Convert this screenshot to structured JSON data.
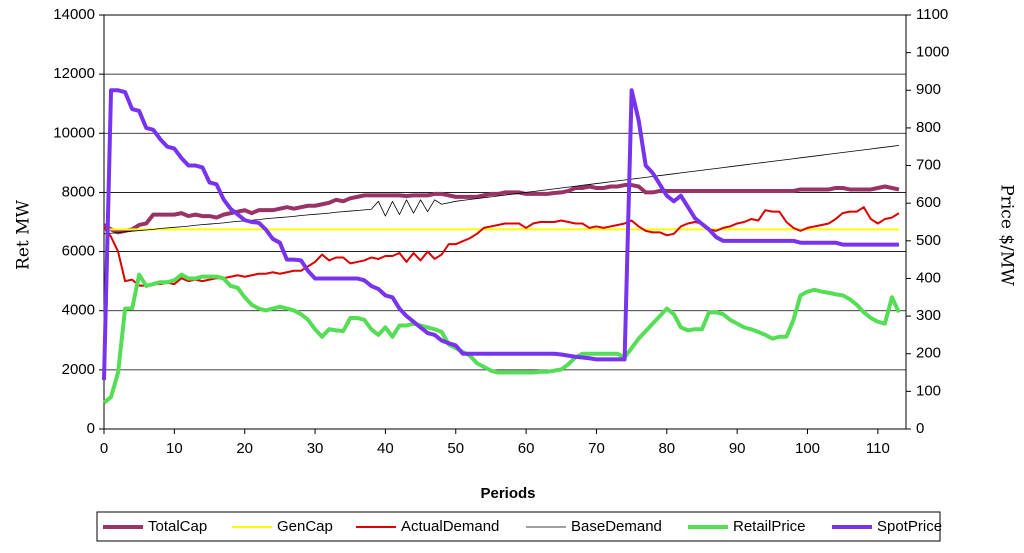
{
  "chart_data": {
    "type": "line",
    "x_label": "Periods",
    "y_label": "Ret MW",
    "y2_label": "Price $/MW",
    "x": [
      0,
      1,
      2,
      3,
      4,
      5,
      6,
      7,
      8,
      9,
      10,
      11,
      12,
      13,
      14,
      15,
      16,
      17,
      18,
      19,
      20,
      21,
      22,
      23,
      24,
      25,
      26,
      27,
      28,
      29,
      30,
      31,
      32,
      33,
      34,
      35,
      36,
      37,
      38,
      39,
      40,
      41,
      42,
      43,
      44,
      45,
      46,
      47,
      48,
      49,
      50,
      51,
      52,
      53,
      54,
      55,
      56,
      57,
      58,
      59,
      60,
      61,
      62,
      63,
      64,
      65,
      66,
      67,
      68,
      69,
      70,
      71,
      72,
      73,
      74,
      75,
      76,
      77,
      78,
      79,
      80,
      81,
      82,
      83,
      84,
      85,
      86,
      87,
      88,
      89,
      90,
      91,
      92,
      93,
      94,
      95,
      96,
      97,
      98,
      99,
      100,
      101,
      102,
      103,
      104,
      105,
      106,
      107,
      108,
      109,
      110,
      111,
      112,
      113
    ],
    "xlim": [
      0,
      114
    ],
    "xticks": [
      0,
      10,
      20,
      30,
      40,
      50,
      60,
      70,
      80,
      90,
      100,
      110
    ],
    "ylim": [
      0,
      14000
    ],
    "yticks": [
      0,
      2000,
      4000,
      6000,
      8000,
      10000,
      12000,
      14000
    ],
    "y2lim": [
      0,
      1100
    ],
    "y2ticks": [
      0,
      100,
      200,
      300,
      400,
      500,
      600,
      700,
      800,
      900,
      1000,
      1100
    ],
    "grid": true,
    "legend": "bottom",
    "series": [
      {
        "name": "TotalCap",
        "color": "#993366",
        "width": 4,
        "values": [
          6900,
          6750,
          6650,
          6700,
          6750,
          6900,
          6950,
          7250,
          7250,
          7250,
          7250,
          7300,
          7200,
          7250,
          7200,
          7200,
          7150,
          7250,
          7300,
          7350,
          7400,
          7300,
          7400,
          7400,
          7400,
          7450,
          7500,
          7450,
          7500,
          7550,
          7550,
          7600,
          7650,
          7750,
          7700,
          7800,
          7850,
          7900,
          7900,
          7900,
          7900,
          7900,
          7900,
          7880,
          7900,
          7900,
          7900,
          7950,
          7950,
          7900,
          7850,
          7850,
          7850,
          7850,
          7900,
          7950,
          7950,
          8000,
          8000,
          8000,
          7950,
          7950,
          7950,
          7950,
          7980,
          8000,
          8050,
          8150,
          8150,
          8200,
          8150,
          8150,
          8200,
          8200,
          8250,
          8250,
          8200,
          8000,
          8000,
          8050,
          8050,
          8050,
          8050,
          8050,
          8050,
          8050,
          8050,
          8050,
          8050,
          8050,
          8050,
          8050,
          8050,
          8050,
          8050,
          8050,
          8050,
          8050,
          8050,
          8100,
          8100,
          8100,
          8100,
          8100,
          8150,
          8150,
          8100,
          8100,
          8100,
          8100,
          8150,
          8200,
          8150,
          8100
        ]
      },
      {
        "name": "GenCap",
        "color": "#ffff00",
        "width": 2,
        "values": [
          6750,
          6750,
          6750,
          6750,
          6750,
          6750,
          6750,
          6750,
          6750,
          6750,
          6750,
          6750,
          6750,
          6750,
          6750,
          6750,
          6750,
          6750,
          6750,
          6750,
          6750,
          6750,
          6750,
          6750,
          6750,
          6750,
          6750,
          6750,
          6750,
          6750,
          6750,
          6750,
          6750,
          6750,
          6750,
          6750,
          6750,
          6750,
          6750,
          6750,
          6750,
          6750,
          6750,
          6750,
          6750,
          6750,
          6750,
          6750,
          6750,
          6750,
          6750,
          6750,
          6750,
          6750,
          6750,
          6750,
          6750,
          6750,
          6750,
          6750,
          6750,
          6750,
          6750,
          6750,
          6750,
          6750,
          6750,
          6750,
          6750,
          6750,
          6750,
          6750,
          6750,
          6750,
          6750,
          6750,
          6750,
          6750,
          6750,
          6750,
          6750,
          6750,
          6750,
          6750,
          6750,
          6750,
          6750,
          6750,
          6750,
          6750,
          6750,
          6750,
          6750,
          6750,
          6750,
          6750,
          6750,
          6750,
          6750,
          6750,
          6750,
          6750,
          6750,
          6750,
          6750,
          6750,
          6750,
          6750,
          6750,
          6750,
          6750,
          6750,
          6750,
          6750
        ]
      },
      {
        "name": "ActualDemand",
        "color": "#dd0000",
        "width": 2,
        "values": [
          6800,
          6500,
          6000,
          5000,
          5050,
          4850,
          4850,
          4900,
          4900,
          4950,
          4900,
          5100,
          5000,
          5050,
          5000,
          5050,
          5100,
          5100,
          5150,
          5200,
          5150,
          5200,
          5250,
          5250,
          5300,
          5250,
          5300,
          5350,
          5350,
          5500,
          5650,
          5900,
          5700,
          5800,
          5800,
          5600,
          5650,
          5700,
          5800,
          5750,
          5850,
          5850,
          5950,
          5650,
          5950,
          5700,
          6000,
          5750,
          5900,
          6250,
          6250,
          6350,
          6450,
          6600,
          6800,
          6850,
          6900,
          6950,
          6950,
          6950,
          6800,
          6950,
          7000,
          7000,
          7000,
          7050,
          7000,
          6950,
          6950,
          6800,
          6850,
          6800,
          6850,
          6900,
          6950,
          7050,
          6850,
          6700,
          6650,
          6650,
          6550,
          6600,
          6850,
          6950,
          7000,
          6950,
          6750,
          6700,
          6800,
          6850,
          6950,
          7000,
          7100,
          7050,
          7400,
          7350,
          7350,
          7000,
          6800,
          6700,
          6800,
          6850,
          6900,
          6950,
          7100,
          7300,
          7350,
          7350,
          7500,
          7100,
          6950,
          7100,
          7150,
          7300
        ]
      },
      {
        "name": "BaseDemand",
        "color": "#000000",
        "width": 0.8,
        "values": [
          6600,
          6620,
          6640,
          6670,
          6690,
          6710,
          6730,
          6750,
          6780,
          6800,
          6820,
          6840,
          6860,
          6890,
          6910,
          6930,
          6950,
          6970,
          7000,
          7020,
          7040,
          7060,
          7080,
          7110,
          7130,
          7150,
          7170,
          7190,
          7220,
          7240,
          7260,
          7280,
          7300,
          7330,
          7350,
          7370,
          7390,
          7410,
          7430,
          7700,
          7200,
          7700,
          7250,
          7750,
          7300,
          7750,
          7350,
          7750,
          7600,
          7650,
          7700,
          7730,
          7760,
          7790,
          7820,
          7850,
          7880,
          7910,
          7940,
          7970,
          8000,
          8030,
          8060,
          8090,
          8120,
          8150,
          8180,
          8210,
          8240,
          8270,
          8300,
          8330,
          8360,
          8390,
          8420,
          8450,
          8480,
          8510,
          8540,
          8570,
          8600,
          8630,
          8660,
          8690,
          8720,
          8750,
          8780,
          8810,
          8840,
          8870,
          8900,
          8930,
          8960,
          8990,
          9020,
          9050,
          9080,
          9110,
          9140,
          9170,
          9200,
          9230,
          9260,
          9290,
          9320,
          9350,
          9380,
          9410,
          9440,
          9470,
          9500,
          9530,
          9560,
          9590
        ]
      },
      {
        "name": "RetailPrice",
        "color": "#55dd55",
        "width": 4,
        "axis": "y2",
        "values": [
          70,
          85,
          150,
          320,
          320,
          410,
          380,
          385,
          390,
          390,
          395,
          410,
          400,
          400,
          405,
          405,
          405,
          400,
          380,
          375,
          350,
          330,
          320,
          315,
          320,
          325,
          320,
          315,
          305,
          290,
          265,
          245,
          265,
          262,
          260,
          295,
          295,
          290,
          265,
          250,
          270,
          245,
          275,
          275,
          280,
          275,
          270,
          265,
          258,
          225,
          215,
          205,
          195,
          175,
          165,
          155,
          150,
          150,
          150,
          150,
          150,
          150,
          152,
          152,
          155,
          158,
          172,
          190,
          200,
          200,
          200,
          200,
          200,
          200,
          190,
          215,
          240,
          260,
          280,
          300,
          320,
          305,
          270,
          262,
          265,
          265,
          310,
          310,
          305,
          290,
          280,
          270,
          265,
          258,
          250,
          240,
          245,
          245,
          290,
          355,
          365,
          370,
          365,
          362,
          358,
          355,
          345,
          330,
          310,
          295,
          285,
          280,
          350,
          310
        ]
      },
      {
        "name": "SpotPrice",
        "color": "#7733ee",
        "width": 4,
        "axis": "y2",
        "values": [
          130,
          900,
          900,
          895,
          850,
          845,
          800,
          795,
          770,
          750,
          745,
          720,
          700,
          700,
          695,
          655,
          650,
          610,
          585,
          570,
          555,
          550,
          548,
          530,
          505,
          495,
          450,
          450,
          448,
          420,
          400,
          400,
          400,
          400,
          400,
          400,
          400,
          395,
          380,
          372,
          355,
          350,
          320,
          300,
          285,
          270,
          255,
          250,
          235,
          228,
          222,
          200,
          200,
          200,
          200,
          200,
          200,
          200,
          200,
          200,
          200,
          200,
          200,
          200,
          200,
          198,
          195,
          192,
          190,
          188,
          185,
          185,
          185,
          185,
          185,
          900,
          820,
          700,
          680,
          650,
          620,
          605,
          620,
          590,
          560,
          545,
          530,
          510,
          500,
          500,
          500,
          500,
          500,
          500,
          500,
          500,
          500,
          500,
          500,
          495,
          495,
          495,
          495,
          495,
          495,
          490,
          490,
          490,
          490,
          490,
          490,
          490,
          490,
          490
        ]
      }
    ]
  }
}
